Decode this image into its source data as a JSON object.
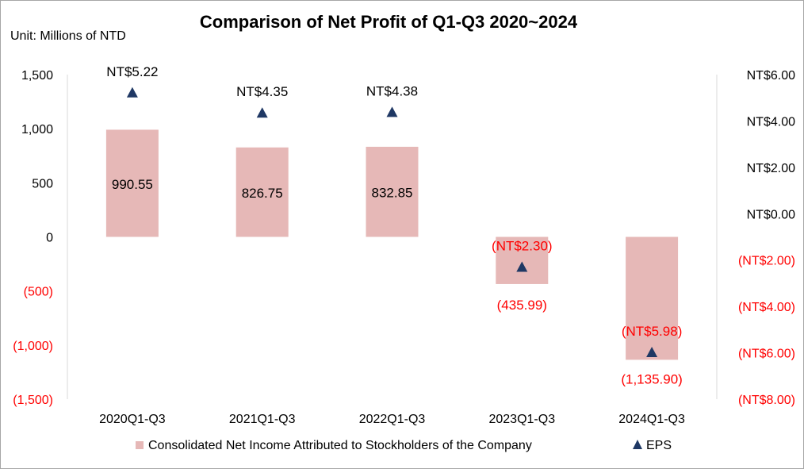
{
  "chart_data": {
    "type": "bar",
    "title": "Comparison of Net Profit of Q1-Q3 2020~2024",
    "unit_label": "Unit: Millions of NTD",
    "categories": [
      "2020Q1-Q3",
      "2021Q1-Q3",
      "2022Q1-Q3",
      "2023Q1-Q3",
      "2024Q1-Q3"
    ],
    "series": [
      {
        "name": "Consolidated Net Income Attributed to Stockholders of the Company",
        "type": "bar",
        "axis": "left",
        "values": [
          990.55,
          826.75,
          832.85,
          -435.99,
          -1135.9
        ],
        "labels": [
          "990.55",
          "826.75",
          "832.85",
          "(435.99)",
          "(1,135.90)"
        ],
        "color": "#e6b8b7"
      },
      {
        "name": "EPS",
        "type": "scatter",
        "axis": "right",
        "values": [
          5.22,
          4.35,
          4.38,
          -2.3,
          -5.98
        ],
        "labels": [
          "NT$5.22",
          "NT$4.35",
          "NT$4.38",
          "(NT$2.30)",
          "(NT$5.98)"
        ],
        "color": "#1f3864"
      }
    ],
    "left_axis": {
      "ylim": [
        -1500,
        1500
      ],
      "ticks": [
        1500,
        1000,
        500,
        0,
        -500,
        -1000,
        -1500
      ],
      "tick_labels": [
        "1,500",
        "1,000",
        "500",
        "0",
        "(500)",
        "(1,000)",
        "(1,500)"
      ]
    },
    "right_axis": {
      "ylim": [
        -8,
        6
      ],
      "ticks": [
        6,
        4,
        2,
        0,
        -2,
        -4,
        -6,
        -8
      ],
      "tick_labels": [
        "NT$6.00",
        "NT$4.00",
        "NT$2.00",
        "NT$0.00",
        "(NT$2.00)",
        "(NT$4.00)",
        "(NT$6.00)",
        "(NT$8.00)"
      ]
    },
    "negative_color": "#ff0000",
    "positive_color": "#000000",
    "legend_position": "bottom",
    "grid": false
  }
}
